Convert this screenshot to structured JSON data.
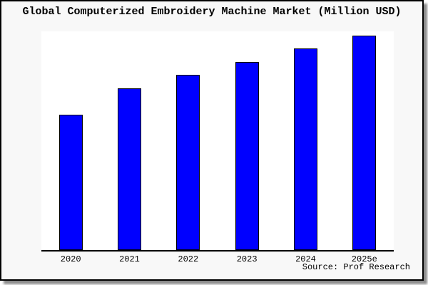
{
  "chart_data": {
    "type": "bar",
    "title": "Global Computerized Embroidery Machine Market (Million USD)",
    "categories": [
      "2020",
      "2021",
      "2022",
      "2023",
      "2024",
      "2025e"
    ],
    "values": [
      63,
      75.3,
      81.7,
      87.7,
      94,
      100
    ],
    "xlabel": "",
    "ylabel": "",
    "ylim": [
      0,
      102
    ],
    "y_axis_visible": false,
    "grid": false,
    "legend": "none",
    "bar_color": "#0000ff",
    "bar_border_color": "#000000"
  },
  "source": "Source: Prof Research",
  "colors": {
    "panel_background": "#f8f8f8",
    "plot_background": "#ffffff",
    "frame_border": "#000000",
    "bar_fill": "#0000ff",
    "text": "#000000"
  }
}
